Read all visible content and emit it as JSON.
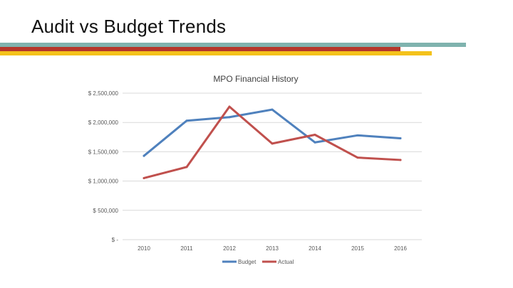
{
  "slide": {
    "title": "Audit vs Budget Trends",
    "accent_colors": {
      "teal": "#7FB3AE",
      "red": "#B5372B",
      "yellow": "#F4C21B"
    }
  },
  "chart_data": {
    "type": "line",
    "title": "MPO Financial History",
    "categories": [
      "2010",
      "2011",
      "2012",
      "2013",
      "2014",
      "2015",
      "2016"
    ],
    "series": [
      {
        "name": "Budget",
        "color": "#4F81BD",
        "values": [
          1430000,
          2030000,
          2090000,
          2220000,
          1660000,
          1780000,
          1730000
        ]
      },
      {
        "name": "Actual",
        "color": "#C0504D",
        "values": [
          1050000,
          1240000,
          2270000,
          1640000,
          1790000,
          1400000,
          1360000
        ]
      }
    ],
    "y_ticks": [
      0,
      500000,
      1000000,
      1500000,
      2000000,
      2500000
    ],
    "y_tick_labels": [
      "$ -",
      "$ 500,000",
      "$ 1,000,000",
      "$ 1,500,000",
      "$ 2,000,000",
      "$ 2,500,000"
    ],
    "ylim": [
      0,
      2500000
    ],
    "grid": true,
    "legend_position": "bottom",
    "xlabel": "",
    "ylabel": ""
  }
}
